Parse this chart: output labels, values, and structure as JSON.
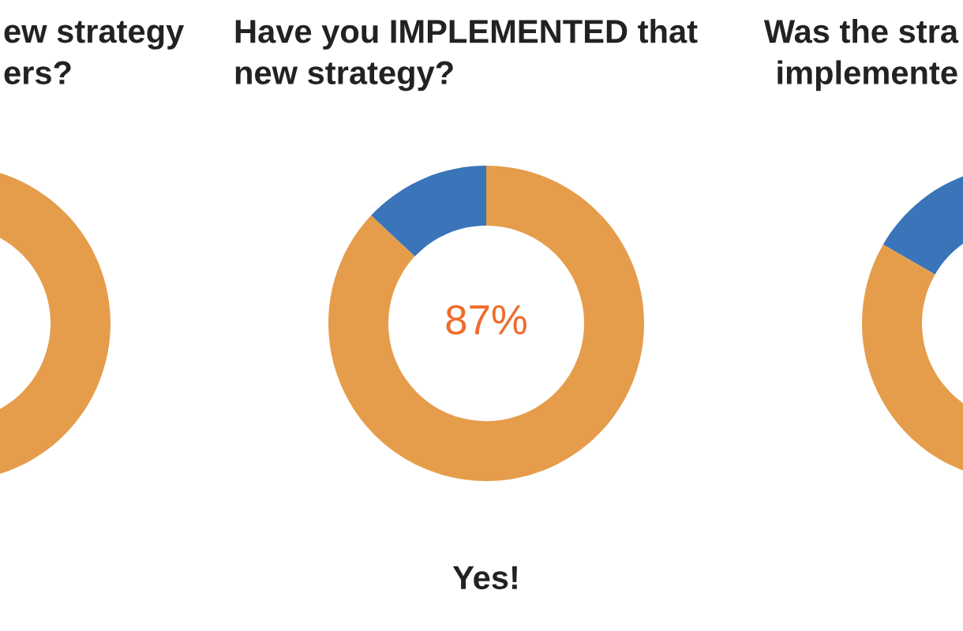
{
  "chart_data": [
    {
      "type": "other",
      "title": "ew strategy\ners?"
    },
    {
      "type": "donut",
      "title": "Have you IMPLEMENTED that\nnew strategy?",
      "categories": [
        null,
        null
      ],
      "values": [
        87,
        13
      ],
      "colors": [
        "#e59d4b",
        "#3a74b9"
      ],
      "value_labels": [
        "87%",
        null
      ],
      "annotations": [
        "Yes!"
      ]
    },
    {
      "type": "other",
      "title": "Was the stra\nimplemente"
    }
  ]
}
